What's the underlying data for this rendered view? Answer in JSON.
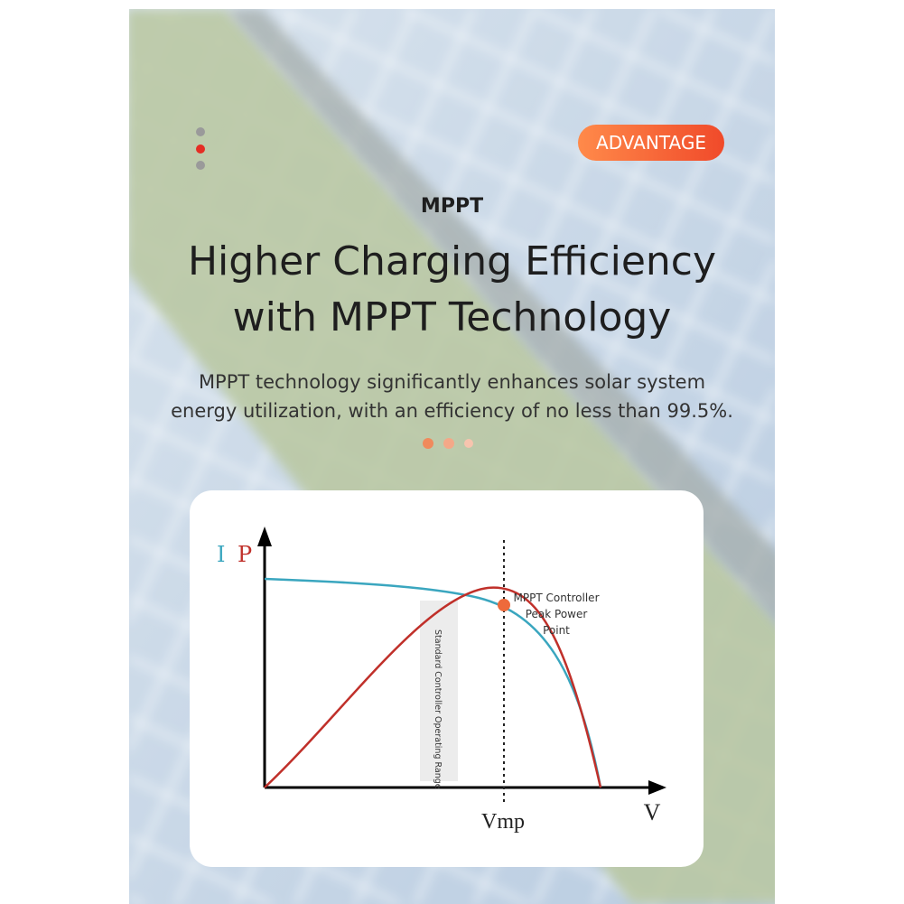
{
  "badge": "ADVANTAGE",
  "kicker": "MPPT",
  "title": [
    "Higher Charging Efficiency",
    "with MPPT Technology"
  ],
  "description": [
    "MPPT technology significantly enhances solar system",
    "energy utilization, with an efficiency of no less than 99.5%."
  ],
  "diagram": {
    "current_label": "I",
    "power_label": "P",
    "x_axis_label": "V",
    "vmp_label": "Vmp",
    "peak_label": [
      "MPPT Controller",
      "Peak Power",
      "Point"
    ],
    "range_label": "Standard Controller Operating Range"
  }
}
